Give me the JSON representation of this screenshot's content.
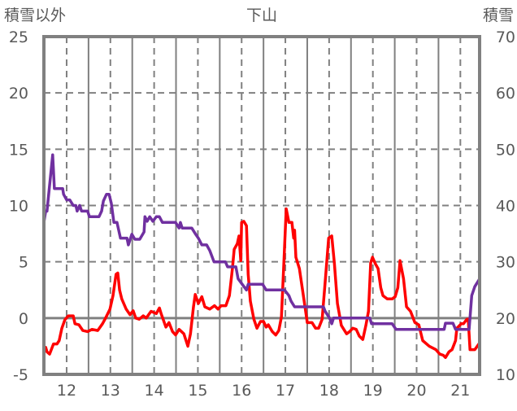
{
  "chart_data": {
    "type": "line",
    "title": "下山",
    "ylabel_left": "積雪以外",
    "ylabel_right": "積雪",
    "xlim": [
      11.48,
      21.44
    ],
    "ylim_left": [
      -5,
      25
    ],
    "ylim_right": [
      10,
      70
    ],
    "x_ticks": [
      12,
      13,
      14,
      15,
      16,
      17,
      18,
      19,
      20,
      21
    ],
    "y_ticks_left": [
      -5,
      0,
      5,
      10,
      15,
      20,
      25
    ],
    "y_ticks_right": [
      10,
      20,
      30,
      40,
      50,
      60,
      70
    ],
    "grid": true,
    "series": [
      {
        "name": "積雪以外",
        "axis": "left",
        "color": "#ff0000",
        "points": [
          [
            11.48,
            -3
          ],
          [
            11.52,
            -2.6
          ],
          [
            11.55,
            -3
          ],
          [
            11.61,
            -3.2
          ],
          [
            11.7,
            -2.3
          ],
          [
            11.78,
            -2.3
          ],
          [
            11.83,
            -2
          ],
          [
            11.89,
            -0.9
          ],
          [
            11.96,
            -0.15
          ],
          [
            12.04,
            0.2
          ],
          [
            12.15,
            0.2
          ],
          [
            12.19,
            -0.5
          ],
          [
            12.28,
            -0.6
          ],
          [
            12.37,
            -1.1
          ],
          [
            12.48,
            -1.2
          ],
          [
            12.58,
            -1
          ],
          [
            12.71,
            -1.1
          ],
          [
            12.82,
            -0.5
          ],
          [
            12.89,
            0
          ],
          [
            12.99,
            0.8
          ],
          [
            13.06,
            2
          ],
          [
            13.13,
            3.9
          ],
          [
            13.17,
            4.0
          ],
          [
            13.21,
            2.5
          ],
          [
            13.26,
            1.7
          ],
          [
            13.36,
            0.8
          ],
          [
            13.45,
            0.3
          ],
          [
            13.52,
            0.65
          ],
          [
            13.58,
            0
          ],
          [
            13.66,
            -0.1
          ],
          [
            13.75,
            0.2
          ],
          [
            13.82,
            0
          ],
          [
            13.93,
            0.6
          ],
          [
            14.05,
            0.4
          ],
          [
            14.12,
            0.9
          ],
          [
            14.16,
            0.4
          ],
          [
            14.27,
            -0.8
          ],
          [
            14.34,
            -0.4
          ],
          [
            14.42,
            -1.2
          ],
          [
            14.49,
            -1.5
          ],
          [
            14.57,
            -1
          ],
          [
            14.68,
            -1.4
          ],
          [
            14.77,
            -2.5
          ],
          [
            14.83,
            -1.4
          ],
          [
            14.9,
            1.0
          ],
          [
            14.94,
            2.1
          ],
          [
            15.01,
            1.3
          ],
          [
            15.09,
            1.9
          ],
          [
            15.16,
            1
          ],
          [
            15.27,
            0.8
          ],
          [
            15.38,
            1.1
          ],
          [
            15.46,
            0.8
          ],
          [
            15.53,
            1.1
          ],
          [
            15.64,
            1.1
          ],
          [
            15.72,
            2
          ],
          [
            15.79,
            4.4
          ],
          [
            15.83,
            6.1
          ],
          [
            15.9,
            6.6
          ],
          [
            15.94,
            7.3
          ],
          [
            15.98,
            5.1
          ],
          [
            16.0,
            8.5
          ],
          [
            16.05,
            8.6
          ],
          [
            16.11,
            8.2
          ],
          [
            16.15,
            3.9
          ],
          [
            16.2,
            1.5
          ],
          [
            16.28,
            -0.1
          ],
          [
            16.35,
            -0.9
          ],
          [
            16.43,
            -0.3
          ],
          [
            16.5,
            -0.3
          ],
          [
            16.56,
            -0.8
          ],
          [
            16.61,
            -0.6
          ],
          [
            16.7,
            -1.2
          ],
          [
            16.78,
            -1.5
          ],
          [
            16.85,
            -1.1
          ],
          [
            16.91,
            0.1
          ],
          [
            16.96,
            4.4
          ],
          [
            17.02,
            9.7
          ],
          [
            17.08,
            8.5
          ],
          [
            17.15,
            8.5
          ],
          [
            17.19,
            7.1
          ],
          [
            17.21,
            7.8
          ],
          [
            17.24,
            5.4
          ],
          [
            17.32,
            4.4
          ],
          [
            17.43,
            1.5
          ],
          [
            17.5,
            -0.4
          ],
          [
            17.61,
            -0.4
          ],
          [
            17.69,
            -0.9
          ],
          [
            17.76,
            -0.9
          ],
          [
            17.84,
            -0.1
          ],
          [
            17.91,
            3.2
          ],
          [
            17.99,
            7.1
          ],
          [
            18.06,
            7.3
          ],
          [
            18.12,
            4.9
          ],
          [
            18.19,
            1.3
          ],
          [
            18.28,
            -0.65
          ],
          [
            18.4,
            -1.4
          ],
          [
            18.47,
            -1.2
          ],
          [
            18.54,
            -0.9
          ],
          [
            18.62,
            -1.0
          ],
          [
            18.69,
            -1.6
          ],
          [
            18.77,
            -1.9
          ],
          [
            18.84,
            -0.65
          ],
          [
            18.9,
            0.6
          ],
          [
            18.95,
            4.9
          ],
          [
            18.99,
            5.4
          ],
          [
            19.06,
            4.8
          ],
          [
            19.12,
            4.4
          ],
          [
            19.18,
            2.7
          ],
          [
            19.23,
            2.0
          ],
          [
            19.33,
            1.7
          ],
          [
            19.44,
            1.7
          ],
          [
            19.51,
            1.9
          ],
          [
            19.57,
            2.7
          ],
          [
            19.62,
            5.1
          ],
          [
            19.7,
            3.5
          ],
          [
            19.77,
            1.0
          ],
          [
            19.86,
            0.6
          ],
          [
            19.96,
            -0.4
          ],
          [
            20.05,
            -0.6
          ],
          [
            20.14,
            -2
          ],
          [
            20.29,
            -2.5
          ],
          [
            20.44,
            -2.8
          ],
          [
            20.53,
            -3.2
          ],
          [
            20.61,
            -3.3
          ],
          [
            20.66,
            -3.5
          ],
          [
            20.74,
            -3
          ],
          [
            20.81,
            -2.8
          ],
          [
            20.89,
            -2
          ],
          [
            20.92,
            -0.9
          ],
          [
            21.02,
            -0.5
          ],
          [
            21.07,
            -0.5
          ],
          [
            21.15,
            -0.1
          ],
          [
            21.18,
            -0.1
          ],
          [
            21.22,
            -2.8
          ],
          [
            21.33,
            -2.8
          ],
          [
            21.44,
            -2.2
          ]
        ]
      },
      {
        "name": "積雪",
        "axis": "right",
        "color": "#7030a0",
        "points": [
          [
            11.48,
            37
          ],
          [
            11.52,
            39
          ],
          [
            11.55,
            39
          ],
          [
            11.68,
            49
          ],
          [
            11.72,
            43
          ],
          [
            11.91,
            43
          ],
          [
            11.93,
            42
          ],
          [
            12.0,
            41
          ],
          [
            12.07,
            41
          ],
          [
            12.15,
            40
          ],
          [
            12.21,
            40
          ],
          [
            12.24,
            39
          ],
          [
            12.3,
            40
          ],
          [
            12.34,
            39
          ],
          [
            12.48,
            39
          ],
          [
            12.52,
            38
          ],
          [
            12.74,
            38
          ],
          [
            12.8,
            39
          ],
          [
            12.84,
            40.8
          ],
          [
            12.91,
            42
          ],
          [
            12.97,
            42
          ],
          [
            13.02,
            40.4
          ],
          [
            13.08,
            37
          ],
          [
            13.15,
            37
          ],
          [
            13.23,
            34.2
          ],
          [
            13.38,
            34.2
          ],
          [
            13.41,
            33
          ],
          [
            13.49,
            34.9
          ],
          [
            13.56,
            34
          ],
          [
            13.67,
            34
          ],
          [
            13.77,
            35.3
          ],
          [
            13.79,
            38
          ],
          [
            13.84,
            37.2
          ],
          [
            13.9,
            38
          ],
          [
            13.97,
            37.2
          ],
          [
            14.05,
            38
          ],
          [
            14.12,
            38
          ],
          [
            14.19,
            37
          ],
          [
            14.49,
            37
          ],
          [
            14.57,
            36
          ],
          [
            14.6,
            37
          ],
          [
            14.64,
            36
          ],
          [
            14.86,
            36
          ],
          [
            14.94,
            35
          ],
          [
            15.01,
            34.2
          ],
          [
            15.09,
            33
          ],
          [
            15.2,
            33
          ],
          [
            15.27,
            32
          ],
          [
            15.37,
            30
          ],
          [
            15.63,
            30
          ],
          [
            15.68,
            29.1
          ],
          [
            15.87,
            29.1
          ],
          [
            15.92,
            27
          ],
          [
            16.11,
            25
          ],
          [
            16.15,
            26
          ],
          [
            16.48,
            26
          ],
          [
            16.56,
            25
          ],
          [
            16.98,
            25
          ],
          [
            17.08,
            24
          ],
          [
            17.13,
            23
          ],
          [
            17.21,
            22
          ],
          [
            17.87,
            22
          ],
          [
            17.91,
            21.2
          ],
          [
            18.01,
            20
          ],
          [
            18.06,
            19
          ],
          [
            18.1,
            20
          ],
          [
            18.93,
            20
          ],
          [
            18.97,
            19
          ],
          [
            19.44,
            19
          ],
          [
            19.53,
            18
          ],
          [
            20.63,
            18
          ],
          [
            20.66,
            19.1
          ],
          [
            20.83,
            19.1
          ],
          [
            20.89,
            18
          ],
          [
            21.2,
            18
          ],
          [
            21.26,
            24
          ],
          [
            21.33,
            25.6
          ],
          [
            21.41,
            26.6
          ],
          [
            21.44,
            27
          ]
        ]
      }
    ]
  }
}
